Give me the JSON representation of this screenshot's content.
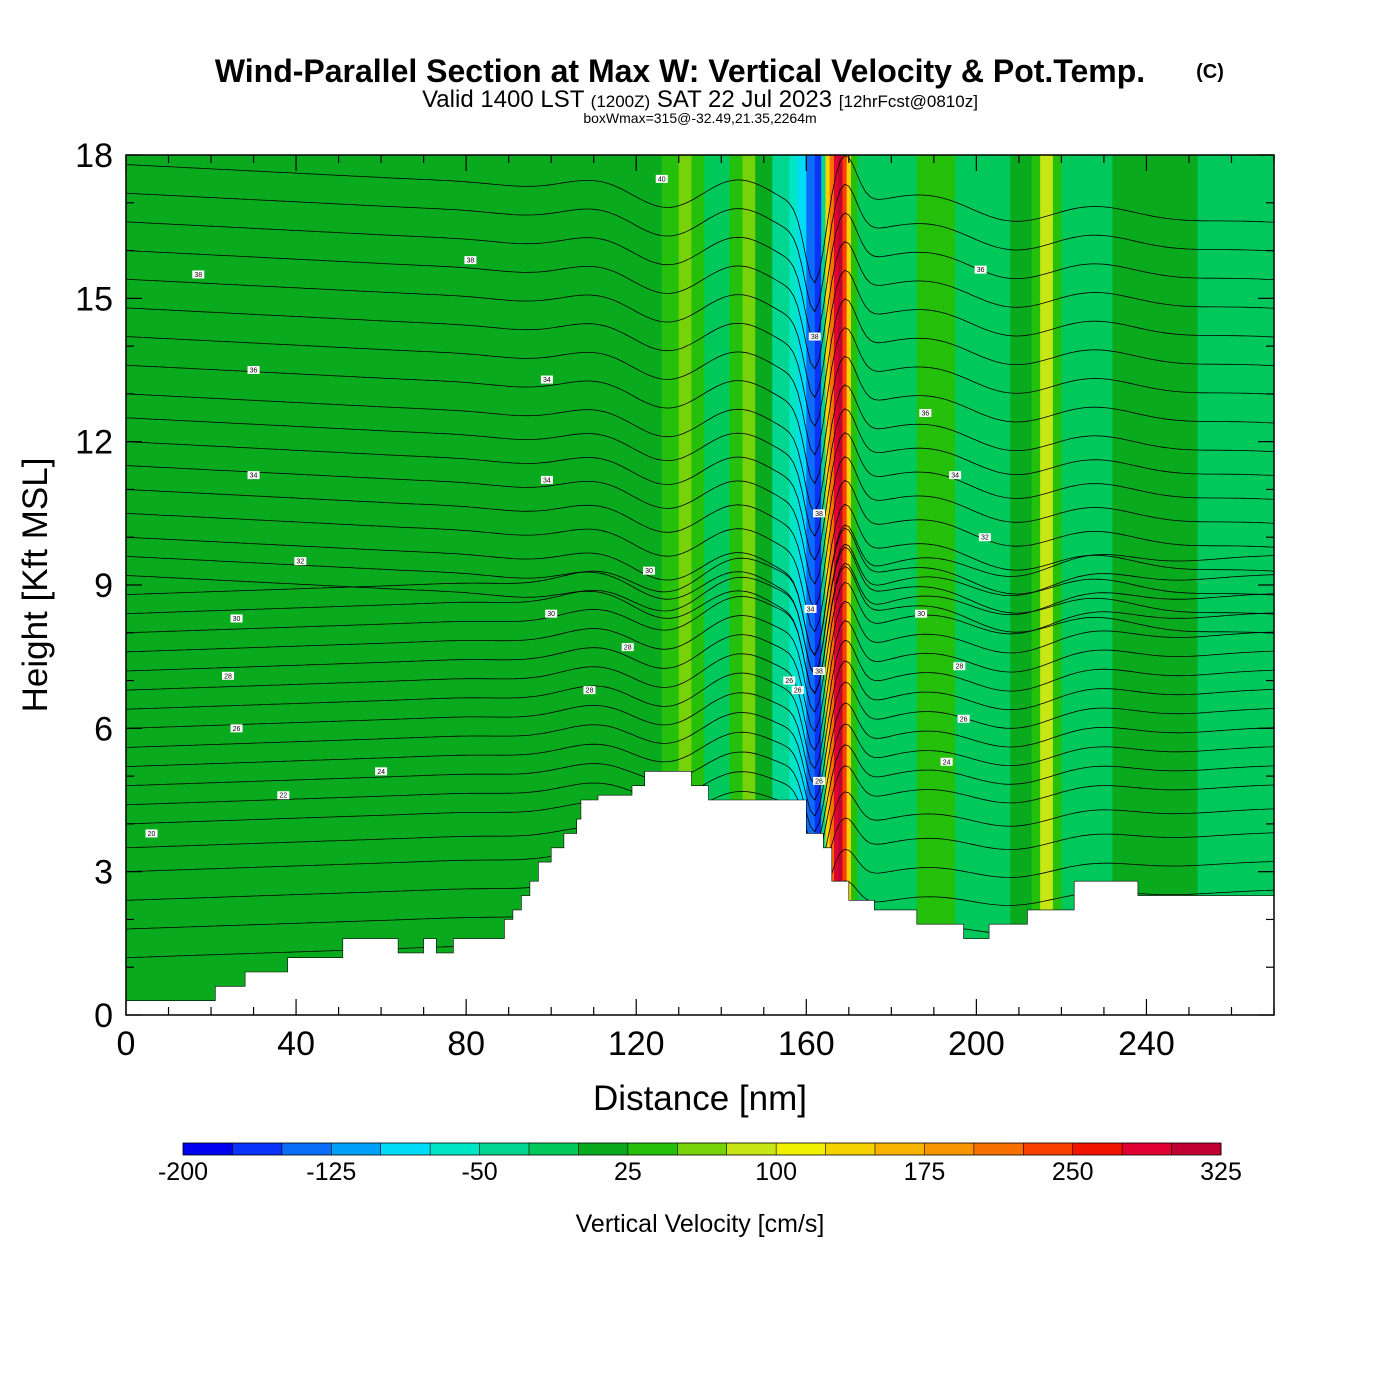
{
  "chart_data": {
    "type": "heatmap",
    "title": "Wind-Parallel Section at Max W: Vertical Velocity & Pot.Temp.",
    "copyright": "(C)",
    "subtitle": {
      "prefix": "Valid 1400 LST",
      "utc": "(1200Z)",
      "date": "SAT 22 Jul 2023",
      "forecast": "[12hrFcst@0810z]"
    },
    "box_info": "boxWmax=315@-32.49,21.35,2264m",
    "xlabel": "Distance [nm]",
    "ylabel": "Height [Kft MSL]",
    "xlim": [
      0,
      270
    ],
    "ylim": [
      0,
      18
    ],
    "x_ticks": [
      0,
      40,
      80,
      120,
      160,
      200,
      240
    ],
    "y_ticks": [
      0,
      3,
      6,
      9,
      12,
      15,
      18
    ],
    "colorbar": {
      "label": "Vertical Velocity [cm/s]",
      "tick_values": [
        -200,
        -125,
        -50,
        25,
        100,
        175,
        250,
        325
      ],
      "tick_labels": [
        "-200",
        "-125",
        "-50",
        "25",
        "100",
        "175",
        "250",
        "325"
      ],
      "min": -200,
      "step": 25,
      "colors": [
        "#0000f0",
        "#0a32f8",
        "#0a6ef8",
        "#00a0f8",
        "#00dcf8",
        "#00e6c4",
        "#00d690",
        "#00c85a",
        "#0aaa1e",
        "#24c00c",
        "#78d20a",
        "#c8e614",
        "#f0f000",
        "#f6d200",
        "#f8b400",
        "#f89600",
        "#f87000",
        "#f84000",
        "#f01400",
        "#e00032",
        "#c00032"
      ]
    },
    "vertical_velocity_max": 315,
    "velocity_bands": [
      {
        "x": [
          0,
          98
        ],
        "w": 5
      },
      {
        "x": [
          98,
          118
        ],
        "w": 12
      },
      {
        "x": [
          118,
          126
        ],
        "w": 5
      },
      {
        "x": [
          126,
          130
        ],
        "w": 40
      },
      {
        "x": [
          130,
          133
        ],
        "w": 70
      },
      {
        "x": [
          133,
          136
        ],
        "w": 35
      },
      {
        "x": [
          136,
          142
        ],
        "w": -25
      },
      {
        "x": [
          142,
          145
        ],
        "w": 30
      },
      {
        "x": [
          145,
          148
        ],
        "w": 60
      },
      {
        "x": [
          148,
          152
        ],
        "w": 0
      },
      {
        "x": [
          152,
          156
        ],
        "w": -30
      },
      {
        "x": [
          156,
          158
        ],
        "w": -65
      },
      {
        "x": [
          158,
          160
        ],
        "w": -95
      },
      {
        "x": [
          160,
          162
        ],
        "w": -130
      },
      {
        "x": [
          162,
          163.5
        ],
        "w": -170
      },
      {
        "x": [
          163.5,
          164.5
        ],
        "w": -40
      },
      {
        "x": [
          164.5,
          165.5
        ],
        "w": 130
      },
      {
        "x": [
          165.5,
          166.5
        ],
        "w": 200
      },
      {
        "x": [
          166.5,
          167.5
        ],
        "w": 290
      },
      {
        "x": [
          167.5,
          168.5
        ],
        "w": 315
      },
      {
        "x": [
          168.5,
          169.5
        ],
        "w": 230
      },
      {
        "x": [
          169.5,
          170.5
        ],
        "w": 140
      },
      {
        "x": [
          170.5,
          172
        ],
        "w": 40
      },
      {
        "x": [
          172,
          186
        ],
        "w": -25
      },
      {
        "x": [
          186,
          195
        ],
        "w": 25
      },
      {
        "x": [
          195,
          208
        ],
        "w": -25
      },
      {
        "x": [
          208,
          213
        ],
        "w": 5
      },
      {
        "x": [
          213,
          215
        ],
        "w": 40
      },
      {
        "x": [
          215,
          218
        ],
        "w": 85
      },
      {
        "x": [
          218,
          220
        ],
        "w": 40
      },
      {
        "x": [
          220,
          232
        ],
        "w": -25
      },
      {
        "x": [
          232,
          252
        ],
        "w": 5
      },
      {
        "x": [
          252,
          270
        ],
        "w": -10
      }
    ],
    "terrain": {
      "distance_nm": [
        0,
        21,
        21,
        28,
        28,
        38,
        38,
        51,
        51,
        64,
        64,
        70,
        70,
        73,
        73,
        77,
        77,
        89,
        89,
        91,
        91,
        93,
        93,
        95,
        95,
        97,
        97,
        100,
        100,
        103,
        103,
        106,
        106,
        107,
        107,
        111,
        111,
        119,
        119,
        122,
        122,
        133,
        133,
        137,
        137,
        160,
        160,
        164,
        164,
        166,
        166,
        170,
        170,
        176,
        176,
        186,
        186,
        197,
        197,
        203,
        203,
        212,
        212,
        223,
        223,
        238,
        238,
        251,
        251,
        259,
        259,
        270
      ],
      "height_kft": [
        0.3,
        0.3,
        0.6,
        0.6,
        0.9,
        0.9,
        1.2,
        1.2,
        1.6,
        1.6,
        1.3,
        1.3,
        1.6,
        1.6,
        1.3,
        1.3,
        1.6,
        1.6,
        2.0,
        2.0,
        2.2,
        2.2,
        2.5,
        2.5,
        2.8,
        2.8,
        3.2,
        3.2,
        3.5,
        3.5,
        3.8,
        3.8,
        4.1,
        4.1,
        4.5,
        4.5,
        4.6,
        4.6,
        4.8,
        4.8,
        5.1,
        5.1,
        4.8,
        4.8,
        4.5,
        4.5,
        3.8,
        3.8,
        3.5,
        3.5,
        2.8,
        2.8,
        2.4,
        2.4,
        2.2,
        2.2,
        1.9,
        1.9,
        1.6,
        1.6,
        1.9,
        1.9,
        2.2,
        2.2,
        2.8,
        2.8,
        2.5,
        2.5,
        2.5,
        2.5,
        2.5,
        2.5
      ]
    },
    "theta_contours": {
      "base_heights_kft": [
        1.2,
        1.8,
        2.4,
        3.0,
        3.5,
        4.0,
        4.4,
        4.8,
        5.2,
        5.6,
        6.0,
        6.4,
        6.8,
        7.2,
        7.6,
        8.0,
        8.4,
        8.8,
        9.2,
        9.6,
        10.0,
        10.5,
        11.0,
        11.5,
        12.0,
        12.5,
        13.0,
        13.6,
        14.2,
        14.8,
        15.4,
        16.0,
        16.6,
        17.2,
        17.8
      ],
      "labels": [
        {
          "x": 6,
          "y": 3.8,
          "text": "20"
        },
        {
          "x": 37,
          "y": 4.6,
          "text": "22"
        },
        {
          "x": 60,
          "y": 5.1,
          "text": "24"
        },
        {
          "x": 26,
          "y": 6.0,
          "text": "26"
        },
        {
          "x": 24,
          "y": 7.1,
          "text": "28"
        },
        {
          "x": 26,
          "y": 8.3,
          "text": "30"
        },
        {
          "x": 41,
          "y": 9.5,
          "text": "32"
        },
        {
          "x": 30,
          "y": 11.3,
          "text": "34"
        },
        {
          "x": 30,
          "y": 13.5,
          "text": "36"
        },
        {
          "x": 17,
          "y": 15.5,
          "text": "38"
        },
        {
          "x": 81,
          "y": 15.8,
          "text": "38"
        },
        {
          "x": 99,
          "y": 13.3,
          "text": "34"
        },
        {
          "x": 99,
          "y": 11.2,
          "text": "34"
        },
        {
          "x": 100,
          "y": 8.4,
          "text": "30"
        },
        {
          "x": 109,
          "y": 6.8,
          "text": "28"
        },
        {
          "x": 118,
          "y": 7.7,
          "text": "28"
        },
        {
          "x": 123,
          "y": 9.3,
          "text": "30"
        },
        {
          "x": 126,
          "y": 17.5,
          "text": "40"
        },
        {
          "x": 156,
          "y": 7.0,
          "text": "26"
        },
        {
          "x": 158,
          "y": 6.8,
          "text": "26"
        },
        {
          "x": 161,
          "y": 8.5,
          "text": "34"
        },
        {
          "x": 162,
          "y": 14.2,
          "text": "38"
        },
        {
          "x": 163,
          "y": 10.5,
          "text": "38"
        },
        {
          "x": 163,
          "y": 7.2,
          "text": "38"
        },
        {
          "x": 163,
          "y": 4.9,
          "text": "26"
        },
        {
          "x": 187,
          "y": 8.4,
          "text": "30"
        },
        {
          "x": 188,
          "y": 12.6,
          "text": "36"
        },
        {
          "x": 193,
          "y": 5.3,
          "text": "24"
        },
        {
          "x": 195,
          "y": 11.3,
          "text": "34"
        },
        {
          "x": 196,
          "y": 7.3,
          "text": "28"
        },
        {
          "x": 197,
          "y": 6.2,
          "text": "26"
        },
        {
          "x": 202,
          "y": 10.0,
          "text": "32"
        },
        {
          "x": 201,
          "y": 15.6,
          "text": "36"
        }
      ]
    }
  }
}
